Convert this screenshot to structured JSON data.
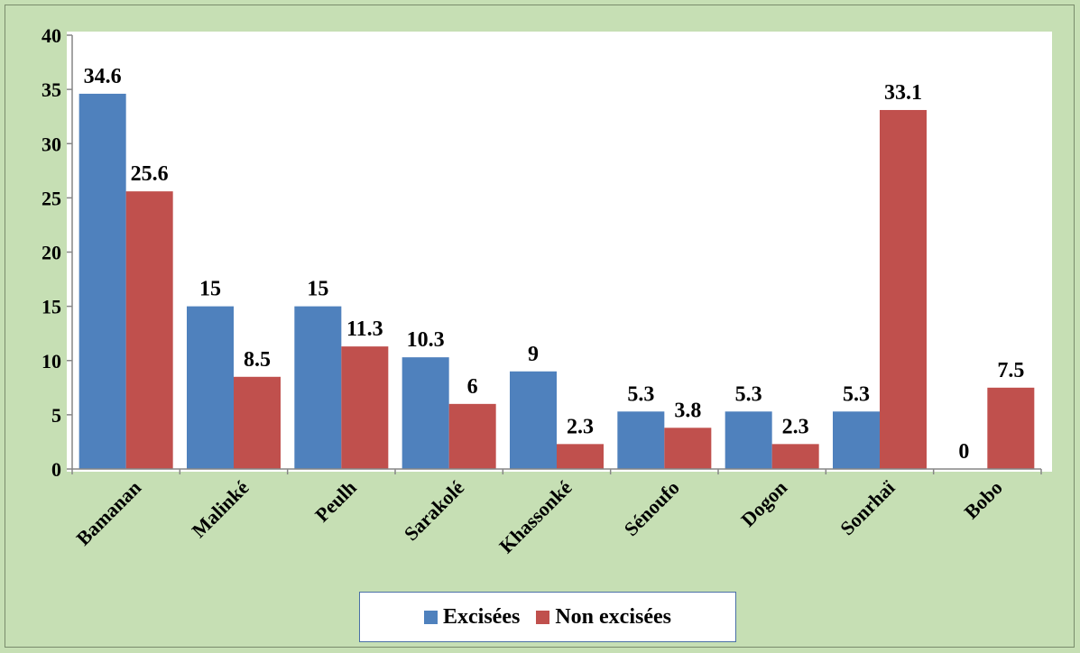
{
  "chart_data": {
    "type": "bar",
    "categories": [
      "Bamanan",
      "Malinké",
      "Peulh",
      "Sarakolé",
      "Khassonké",
      "Sénoufo",
      "Dogon",
      "Sonrhaï",
      "Bobo"
    ],
    "series": [
      {
        "name": "Excisées",
        "color": "#4f81bd",
        "values": [
          34.6,
          15,
          15,
          10.3,
          9,
          5.3,
          5.3,
          5.3,
          0
        ]
      },
      {
        "name": "Non excisées",
        "color": "#c0504d",
        "values": [
          25.6,
          8.5,
          11.3,
          6,
          2.3,
          3.8,
          2.3,
          33.1,
          7.5
        ]
      }
    ],
    "ylim": [
      0,
      40
    ],
    "yticks": [
      0,
      5,
      10,
      15,
      20,
      25,
      30,
      35,
      40
    ],
    "grid": false,
    "legend_position": "bottom",
    "xlabel": "",
    "ylabel": "",
    "title": ""
  }
}
